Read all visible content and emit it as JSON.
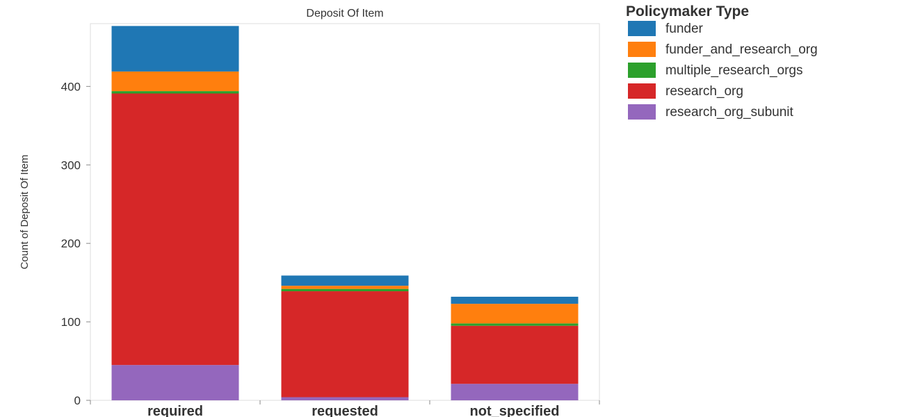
{
  "chart_data": {
    "type": "bar",
    "stacked": true,
    "title": "Deposit Of Item",
    "xlabel": "",
    "ylabel": "Count of Deposit Of Item",
    "ylim": [
      0,
      480
    ],
    "yticks": [
      0,
      100,
      200,
      300,
      400
    ],
    "grid": false,
    "legend_placement": "right",
    "categories": [
      "required",
      "requested",
      "not_specified"
    ],
    "legend_title": "Policymaker Type",
    "series": [
      {
        "name": "research_org_subunit",
        "color": "#9467bd",
        "values": [
          45,
          4,
          21
        ]
      },
      {
        "name": "research_org",
        "color": "#d62728",
        "values": [
          346,
          135,
          74
        ]
      },
      {
        "name": "multiple_research_orgs",
        "color": "#2ca02c",
        "values": [
          3,
          3,
          3
        ]
      },
      {
        "name": "funder_and_research_org",
        "color": "#ff7f0e",
        "values": [
          25,
          4,
          25
        ]
      },
      {
        "name": "funder",
        "color": "#1f77b4",
        "values": [
          58,
          13,
          9
        ]
      }
    ],
    "legend_order": [
      "funder",
      "funder_and_research_org",
      "multiple_research_orgs",
      "research_org",
      "research_org_subunit"
    ]
  }
}
